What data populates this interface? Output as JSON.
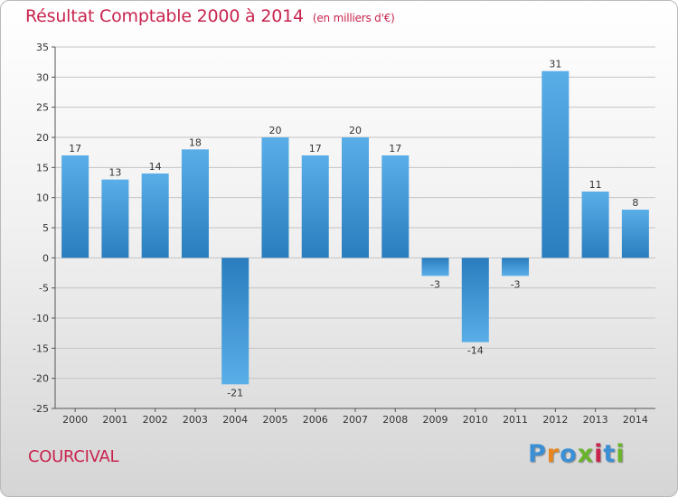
{
  "header": {
    "title": "Résultat Comptable 2000 à 2014",
    "subtitle": "(en milliers d'€)"
  },
  "footer": {
    "town": "COURCIVAL",
    "brand": "Proxiti",
    "brand_letter_colors": [
      "#3b8fd4",
      "#e8851e",
      "#3b8fd4",
      "#6ab42d",
      "#c8244e",
      "#3b8fd4",
      "#6ab42d"
    ]
  },
  "chart_data": {
    "type": "bar",
    "title": "Résultat Comptable 2000 à 2014",
    "subtitle": "(en milliers d'€)",
    "xlabel": "",
    "ylabel": "",
    "categories": [
      "2000",
      "2001",
      "2002",
      "2003",
      "2004",
      "2005",
      "2006",
      "2007",
      "2008",
      "2009",
      "2010",
      "2011",
      "2012",
      "2013",
      "2014"
    ],
    "values": [
      17,
      13,
      14,
      18,
      -21,
      20,
      17,
      20,
      17,
      -3,
      -14,
      -3,
      31,
      11,
      8
    ],
    "data_labels": [
      "17",
      "13",
      "14",
      "18",
      "-21",
      "20",
      "17",
      "20",
      "17",
      "-3",
      "-14",
      "-3",
      "31",
      "11",
      "8"
    ],
    "ylim": [
      -25,
      35
    ],
    "yticks": [
      -25,
      -20,
      -15,
      -10,
      -5,
      0,
      5,
      10,
      15,
      20,
      25,
      30,
      35
    ],
    "grid": true,
    "colors": {
      "bar_light": "#5aaee8",
      "bar_dark": "#2a7dbd",
      "grid": "#c4c4c4",
      "axis": "#555555"
    }
  }
}
